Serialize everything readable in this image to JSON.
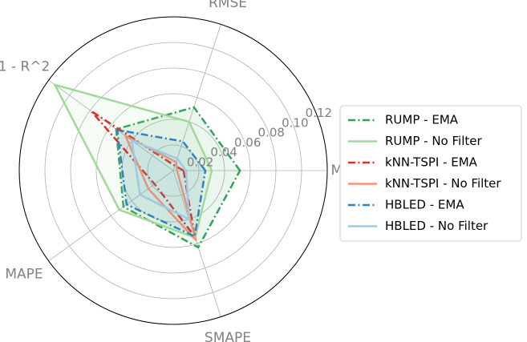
{
  "chart_data": {
    "type": "radar",
    "axes": [
      "MAE",
      "RMSE",
      "1 - R^2",
      "MAPE",
      "SMAPE"
    ],
    "rmax": 0.12,
    "ticks": [
      0.02,
      0.04,
      0.06,
      0.08,
      0.1,
      0.12
    ],
    "tick_labels": [
      "0.02",
      "0.04",
      "0.06",
      "0.08",
      "0.10",
      "0.12"
    ],
    "grid": true,
    "legend_position": "right",
    "series": [
      {
        "name": "RUMP - EMA",
        "color": "#31a354",
        "dash": "dashdot",
        "fill": true,
        "values": [
          0.052,
          0.052,
          0.055,
          0.048,
          0.063
        ]
      },
      {
        "name": "RUMP - No Filter",
        "color": "#a1d99b",
        "dash": "solid",
        "fill": true,
        "values": [
          0.03,
          0.04,
          0.114,
          0.052,
          0.055
        ]
      },
      {
        "name": "kNN-TSPI - EMA",
        "color": "#de2d26",
        "dash": "dashdot",
        "fill": false,
        "values": [
          0.008,
          0.004,
          0.079,
          0.018,
          0.054
        ]
      },
      {
        "name": "kNN-TSPI - No Filter",
        "color": "#fc9272",
        "dash": "solid",
        "fill": false,
        "values": [
          0.003,
          0.007,
          0.046,
          0.024,
          0.057
        ]
      },
      {
        "name": "HBLED - EMA",
        "color": "#3182bd",
        "dash": "dashdot",
        "fill": true,
        "values": [
          0.025,
          0.024,
          0.054,
          0.045,
          0.054
        ]
      },
      {
        "name": "HBLED - No Filter",
        "color": "#9ecae1",
        "dash": "solid",
        "fill": true,
        "values": [
          0.01,
          0.01,
          0.04,
          0.032,
          0.04
        ]
      }
    ]
  }
}
